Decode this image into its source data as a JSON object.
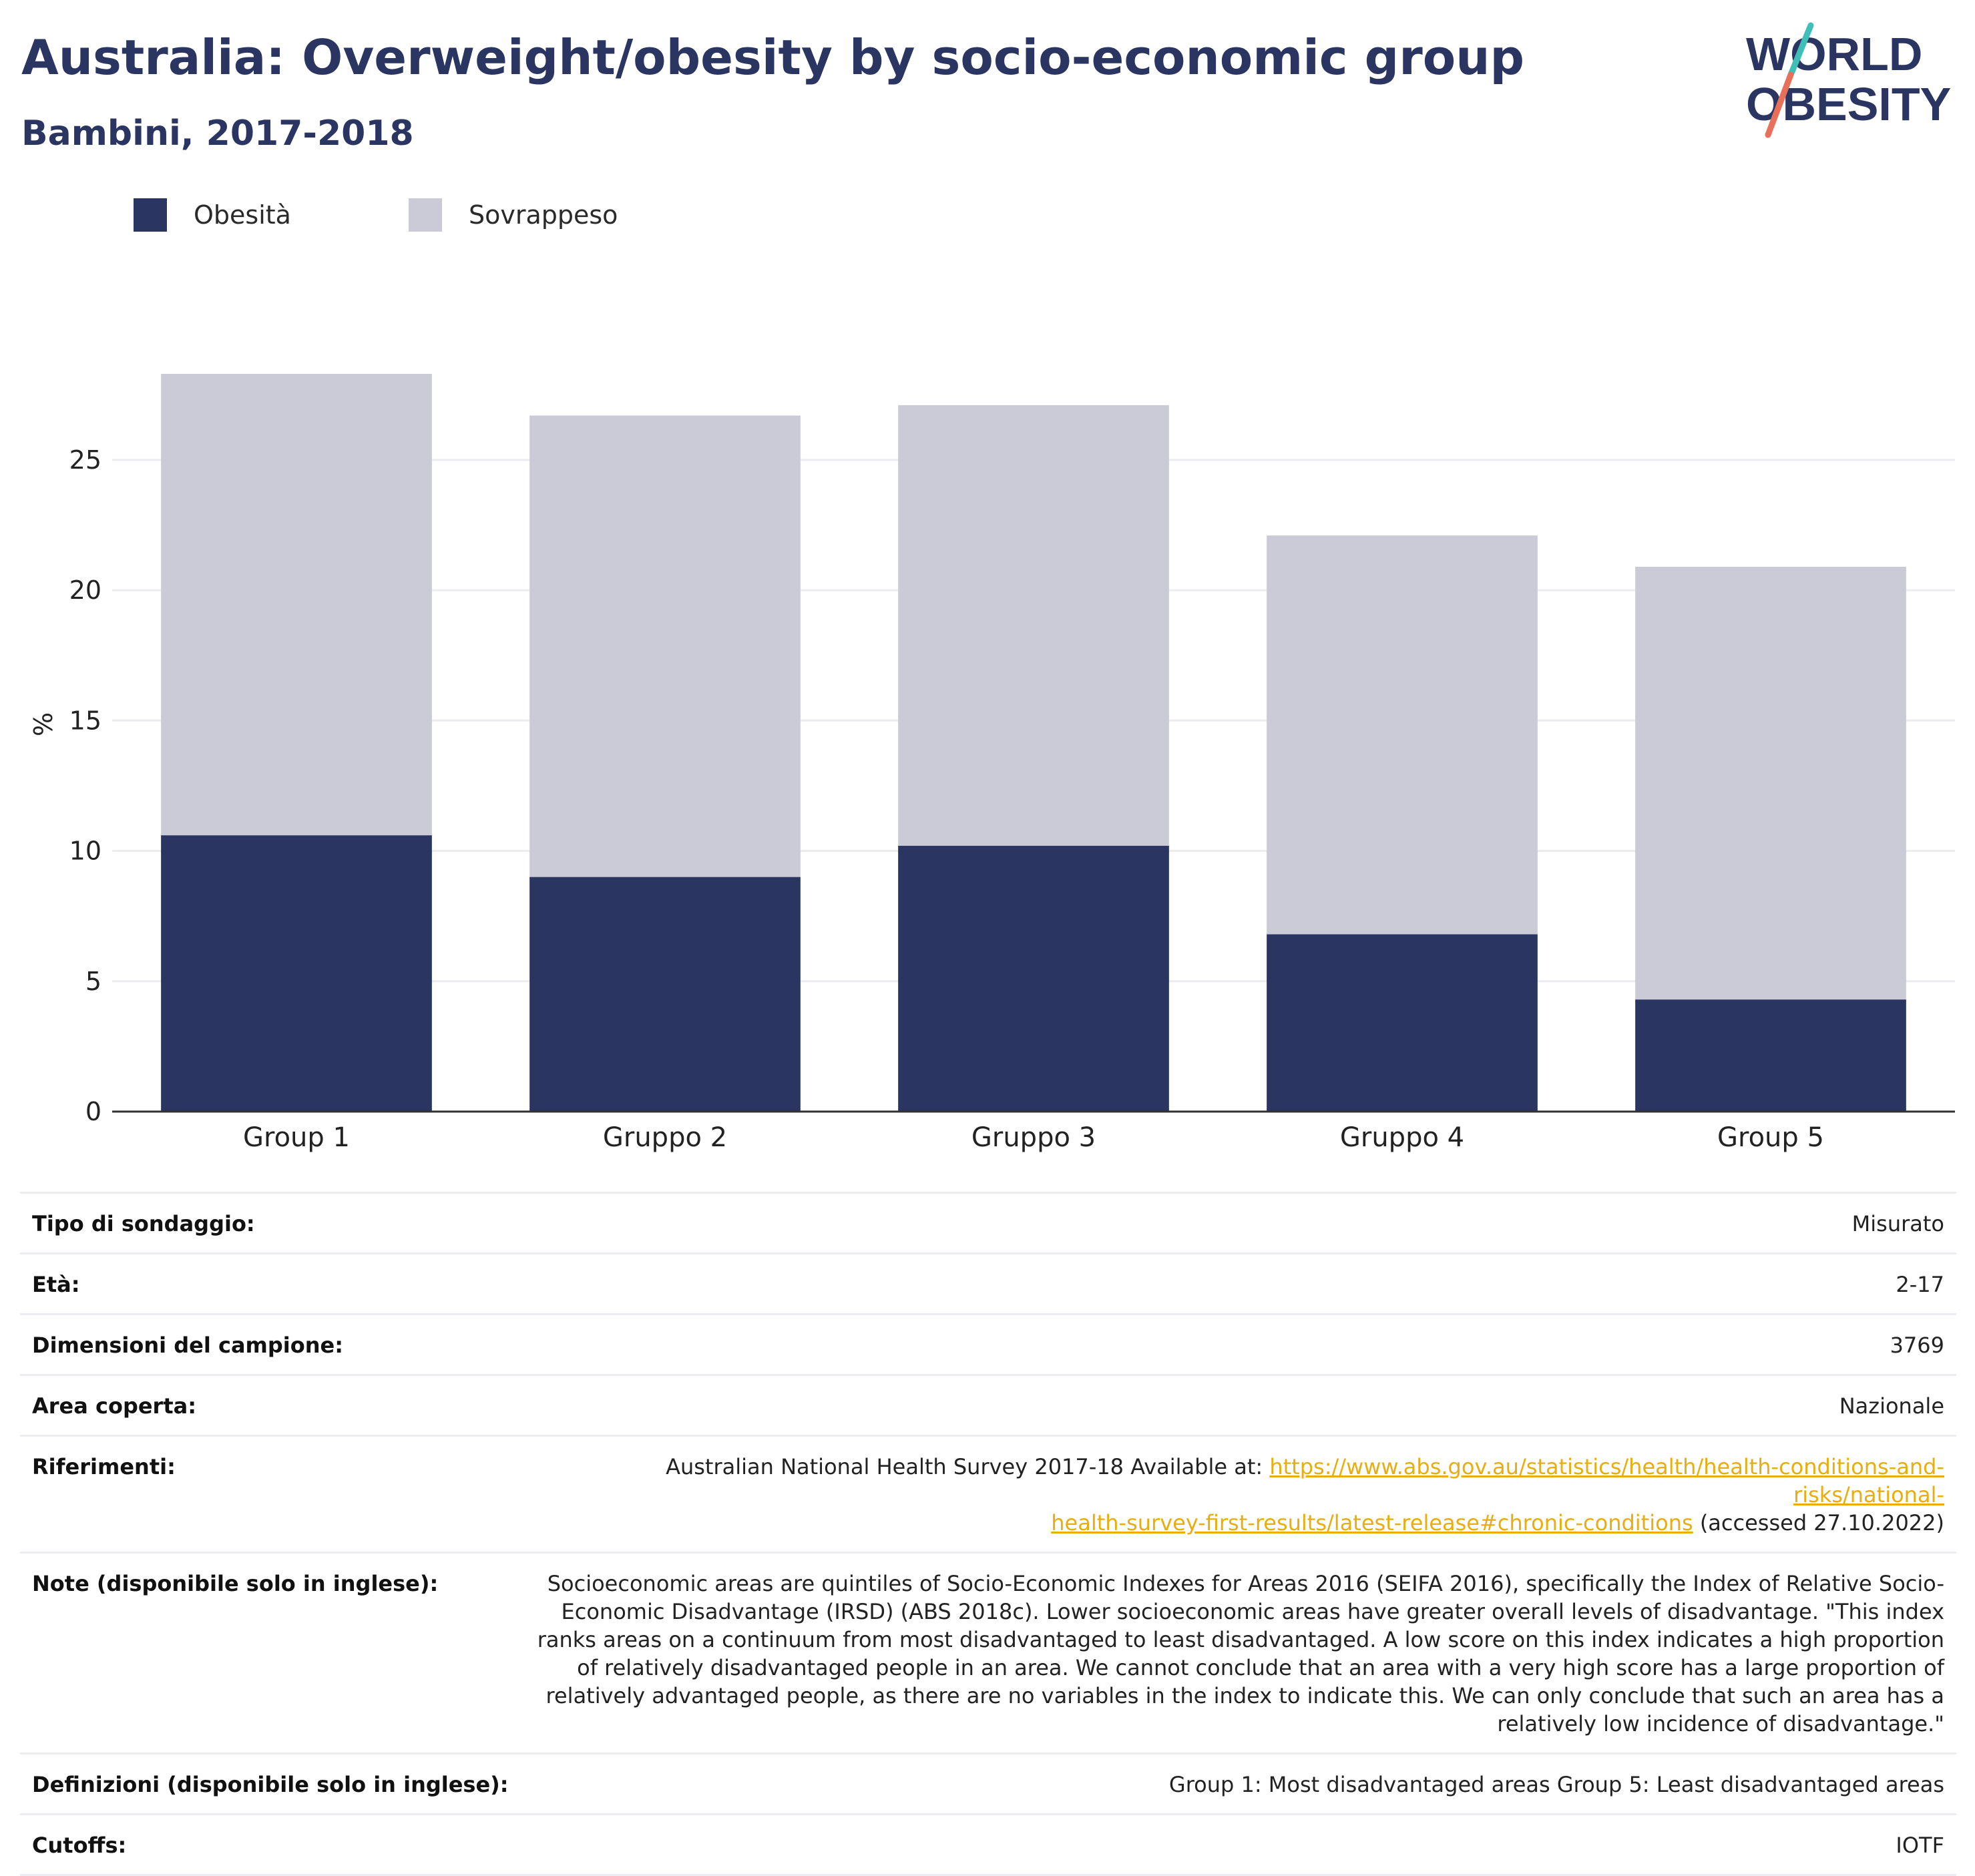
{
  "header": {
    "title": "Australia: Overweight/obesity by socio-economic group",
    "subtitle": "Bambini, 2017-2018",
    "logo_line1": "WORLD",
    "logo_line2": "OBESITY"
  },
  "colors": {
    "obesity": "#2b3562",
    "overweight": "#cacbd7",
    "title": "#2b3562",
    "link": "#e8ad0f"
  },
  "chart_data": {
    "type": "bar",
    "stacked": true,
    "categories": [
      "Group 1",
      "Gruppo 2",
      "Gruppo 3",
      "Gruppo 4",
      "Group 5"
    ],
    "series": [
      {
        "name": "Obesità",
        "values": [
          10.6,
          9.0,
          10.2,
          6.8,
          4.3
        ]
      },
      {
        "name": "Sovrappeso",
        "values": [
          17.7,
          17.7,
          16.9,
          15.3,
          16.6
        ]
      }
    ],
    "ylabel": "%",
    "ylim": [
      0,
      28.3
    ],
    "yticks": [
      0,
      5,
      10,
      15,
      20,
      25
    ],
    "grid": true,
    "legend_position": "top-left"
  },
  "info": [
    {
      "label": "Tipo di sondaggio:",
      "value": "Misurato"
    },
    {
      "label": "Età:",
      "value": "2-17"
    },
    {
      "label": "Dimensioni del campione:",
      "value": "3769"
    },
    {
      "label": "Area coperta:",
      "value": "Nazionale"
    },
    {
      "label": "Riferimenti:",
      "value_pre": "Australian National Health Survey 2017-18 Available at: ",
      "link_1": "https://www.abs.gov.au/statistics/health/health-conditions-and-risks/national-",
      "link_2": "health-survey-first-results/latest-release#chronic-conditions",
      "value_post": " (accessed 27.10.2022)"
    },
    {
      "label": "Note (disponibile solo in inglese):",
      "value": "Socioeconomic areas are quintiles of Socio-Economic Indexes for Areas 2016 (SEIFA 2016), specifically the Index of Relative Socio-Economic Disadvantage (IRSD) (ABS 2018c). Lower socioeconomic areas have greater overall levels of disadvantage. \"This index ranks areas on a continuum from most disadvantaged to least disadvantaged. A low score on this index indicates a high proportion of relatively disadvantaged people in an area. We cannot conclude that an area with a very high score has a large proportion of relatively advantaged people, as there are no variables in the index to indicate this. We can only conclude that such an area has a relatively low incidence of disadvantage.\""
    },
    {
      "label": "Definizioni (disponibile solo in inglese):",
      "value": "Group 1: Most disadvantaged areas Group 5: Least disadvantaged areas"
    },
    {
      "label": "Cutoffs:",
      "value": "IOTF"
    }
  ]
}
